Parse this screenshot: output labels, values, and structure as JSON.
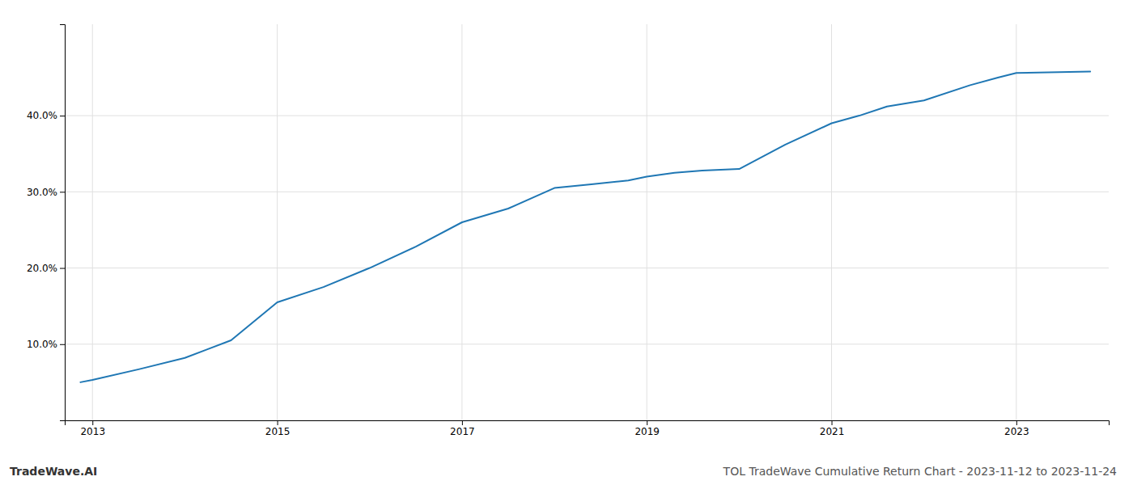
{
  "chart_data": {
    "type": "line",
    "title": "TOL TradeWave Cumulative Return Chart - 2023-11-12 to 2023-11-24",
    "annotations": [
      "TradeWave.AI"
    ],
    "x": [
      2012.87,
      2013.0,
      2013.5,
      2014.0,
      2014.5,
      2015.0,
      2015.5,
      2016.0,
      2016.5,
      2017.0,
      2017.5,
      2018.0,
      2018.4,
      2018.8,
      2019.0,
      2019.3,
      2019.6,
      2020.0,
      2020.5,
      2021.0,
      2021.3,
      2021.6,
      2022.0,
      2022.5,
      2022.8,
      2023.0,
      2023.8
    ],
    "values": [
      0.05,
      0.053,
      0.067,
      0.082,
      0.105,
      0.155,
      0.175,
      0.2,
      0.228,
      0.26,
      0.278,
      0.305,
      0.31,
      0.315,
      0.32,
      0.325,
      0.328,
      0.33,
      0.362,
      0.39,
      0.4,
      0.412,
      0.42,
      0.44,
      0.45,
      0.456,
      0.458
    ],
    "xlim": [
      2012.7,
      2024.0
    ],
    "ylim": [
      0.0,
      0.52
    ],
    "xticks": [
      2013,
      2015,
      2017,
      2019,
      2021,
      2023
    ],
    "yticks": [
      {
        "value": 0.1,
        "label": "10.0%"
      },
      {
        "value": 0.2,
        "label": "20.0%"
      },
      {
        "value": 0.3,
        "label": "30.0%"
      },
      {
        "value": 0.4,
        "label": "40.0%"
      }
    ],
    "grid": true
  }
}
